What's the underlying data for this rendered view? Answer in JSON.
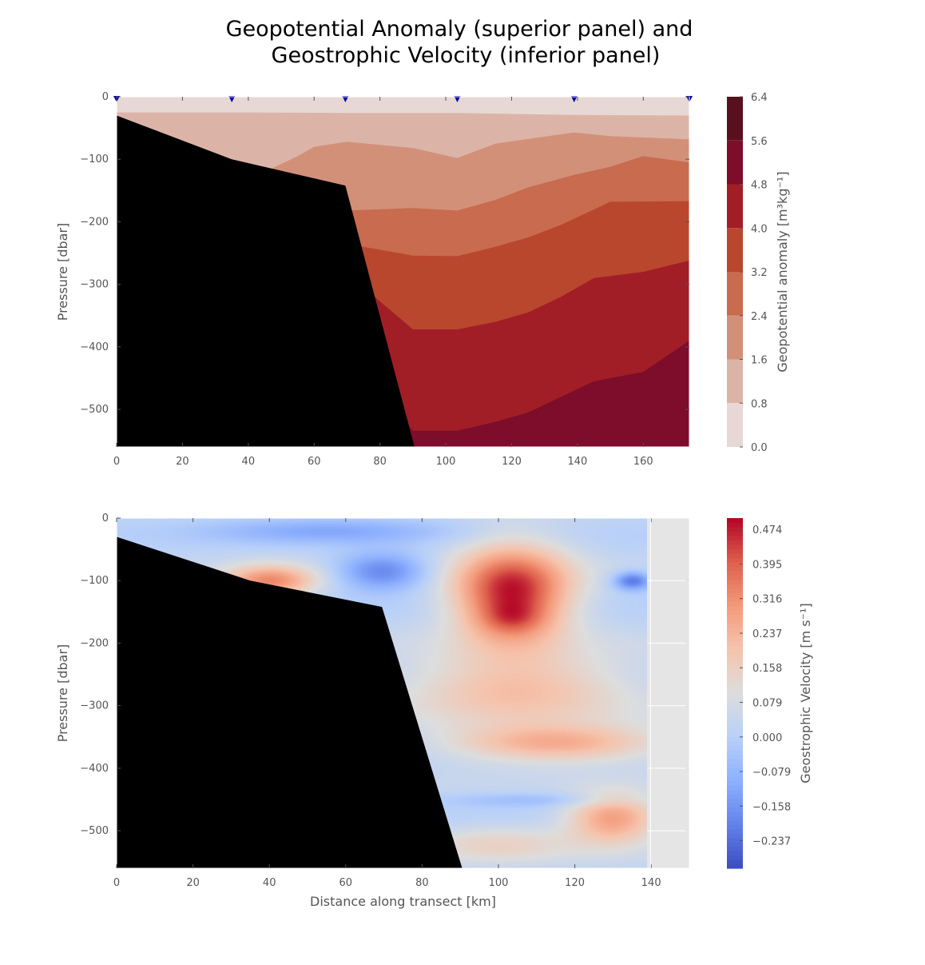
{
  "figure": {
    "title_line1": "Geopotential Anomaly (superior panel) and",
    "title_line2": "Geostrophic Velocity (inferior panel)"
  },
  "chart_data": [
    {
      "type": "heatmap",
      "subtype": "filled-contour",
      "xlabel": "",
      "ylabel": "Pressure [dbar]",
      "xlim": [
        0,
        174
      ],
      "ylim": [
        -560,
        0
      ],
      "xticks": [
        0,
        20,
        40,
        60,
        80,
        100,
        120,
        140,
        160
      ],
      "yticks": [
        0,
        -100,
        -200,
        -300,
        -400,
        -500
      ],
      "colorbar": {
        "label": "Geopotential anomaly [m³kg⁻¹]",
        "levels": [
          0.0,
          0.8,
          1.6,
          2.4,
          3.2,
          4.0,
          4.8,
          5.6,
          6.4
        ],
        "level_labels": [
          "0.0",
          "0.8",
          "1.6",
          "2.4",
          "3.2",
          "4.0",
          "4.8",
          "5.6",
          "6.4"
        ],
        "colors": [
          "#e8d8d5",
          "#dcb4a7",
          "#d39079",
          "#c86b4f",
          "#b9472e",
          "#a11e27",
          "#7d0d2a",
          "#58101f"
        ]
      },
      "stations_x": [
        0,
        35,
        69.5,
        103.5,
        139,
        174
      ],
      "station_marker_color": "#0000aa",
      "bathymetry": {
        "x": [
          0,
          35,
          69.5,
          90.5
        ],
        "y": [
          -30,
          -100,
          -142,
          -560
        ],
        "color": "#000000"
      },
      "contour_boundaries": [
        {
          "level": 0.8,
          "points": [
            [
              0,
              -25
            ],
            [
              35,
              -25
            ],
            [
              69.5,
              -26
            ],
            [
              103.5,
              -26
            ],
            [
              139,
              -29
            ],
            [
              174,
              -30
            ]
          ]
        },
        {
          "level": 1.6,
          "points": [
            [
              0,
              -65
            ],
            [
              15,
              -65
            ],
            [
              25,
              -95
            ],
            [
              35,
              -100
            ],
            [
              47,
              -115
            ],
            [
              55,
              -95
            ],
            [
              60,
              -80
            ],
            [
              70,
              -72
            ],
            [
              90,
              -82
            ],
            [
              103.5,
              -98
            ],
            [
              115,
              -75
            ],
            [
              139,
              -57
            ],
            [
              150,
              -63
            ],
            [
              174,
              -68
            ]
          ]
        },
        {
          "level": 2.4,
          "points": [
            [
              0,
              -120
            ],
            [
              35,
              -140
            ],
            [
              55,
              -170
            ],
            [
              69.5,
              -182
            ],
            [
              90,
              -178
            ],
            [
              103.5,
              -182
            ],
            [
              115,
              -165
            ],
            [
              125,
              -145
            ],
            [
              139,
              -125
            ],
            [
              150,
              -112
            ],
            [
              160,
              -95
            ],
            [
              174,
              -105
            ]
          ]
        },
        {
          "level": 3.2,
          "points": [
            [
              0,
              -200
            ],
            [
              35,
              -210
            ],
            [
              69.5,
              -235
            ],
            [
              90,
              -254
            ],
            [
              103.5,
              -255
            ],
            [
              115,
              -240
            ],
            [
              125,
              -225
            ],
            [
              135,
              -205
            ],
            [
              150,
              -168
            ],
            [
              174,
              -167
            ]
          ]
        },
        {
          "level": 4.0,
          "points": [
            [
              0,
              -250
            ],
            [
              35,
              -260
            ],
            [
              69.5,
              -280
            ],
            [
              90,
              -372
            ],
            [
              103.5,
              -372
            ],
            [
              115,
              -360
            ],
            [
              125,
              -345
            ],
            [
              135,
              -320
            ],
            [
              145,
              -290
            ],
            [
              160,
              -280
            ],
            [
              174,
              -262
            ]
          ]
        },
        {
          "level": 4.8,
          "points": [
            [
              0,
              -320
            ],
            [
              35,
              -360
            ],
            [
              69.5,
              -420
            ],
            [
              90,
              -534
            ],
            [
              103.5,
              -534
            ],
            [
              115,
              -520
            ],
            [
              125,
              -505
            ],
            [
              135,
              -480
            ],
            [
              145,
              -455
            ],
            [
              160,
              -440
            ],
            [
              174,
              -390
            ]
          ]
        },
        {
          "level": 5.6,
          "points": [
            [
              0,
              -600
            ],
            [
              174,
              -600
            ]
          ]
        }
      ]
    },
    {
      "type": "heatmap",
      "subtype": "section",
      "xlabel": "Distance along transect [km]",
      "ylabel": "Pressure [dbar]",
      "xlim": [
        0,
        150
      ],
      "ylim": [
        -560,
        0
      ],
      "xticks": [
        0,
        20,
        40,
        60,
        80,
        100,
        120,
        140
      ],
      "yticks": [
        0,
        -100,
        -200,
        -300,
        -400,
        -500
      ],
      "data_xmax": 139,
      "nodata_color": "#e5e5e5",
      "colorbar": {
        "label": "Geostrophic Velocity [m s⁻¹]",
        "vmin": -0.3,
        "vmax": 0.5,
        "tick_values": [
          0.474,
          0.395,
          0.316,
          0.237,
          0.158,
          0.079,
          0.0,
          -0.079,
          -0.158,
          -0.237
        ],
        "tick_labels": [
          "0.474",
          "0.395",
          "0.316",
          "0.237",
          "0.158",
          "0.079",
          "0.000",
          "−0.079",
          "−0.158",
          "−0.237"
        ],
        "colormap": "coolwarm"
      },
      "bathymetry": {
        "x": [
          0,
          35,
          69.5,
          90.5
        ],
        "y": [
          -30,
          -100,
          -142,
          -560
        ],
        "color": "#000000"
      },
      "velocity_features": [
        {
          "x": 103.5,
          "y": -120,
          "value": 0.47,
          "sx": 15,
          "sy": 75
        },
        {
          "x": 103.5,
          "y": -160,
          "value": 0.1,
          "sx": 8,
          "sy": 25
        },
        {
          "x": 40,
          "y": -100,
          "value": 0.3,
          "sx": 12,
          "sy": 25
        },
        {
          "x": 69.5,
          "y": -85,
          "value": -0.22,
          "sx": 12,
          "sy": 30
        },
        {
          "x": 55,
          "y": -20,
          "value": -0.12,
          "sx": 30,
          "sy": 20
        },
        {
          "x": 135,
          "y": -100,
          "value": -0.25,
          "sx": 5,
          "sy": 15
        },
        {
          "x": 105,
          "y": -270,
          "value": 0.2,
          "sx": 30,
          "sy": 60
        },
        {
          "x": 115,
          "y": -360,
          "value": 0.24,
          "sx": 28,
          "sy": 30
        },
        {
          "x": 130,
          "y": -480,
          "value": 0.28,
          "sx": 12,
          "sy": 40
        },
        {
          "x": 110,
          "y": -450,
          "value": -0.08,
          "sx": 25,
          "sy": 12
        },
        {
          "x": 100,
          "y": -520,
          "value": 0.12,
          "sx": 20,
          "sy": 30
        }
      ]
    }
  ]
}
